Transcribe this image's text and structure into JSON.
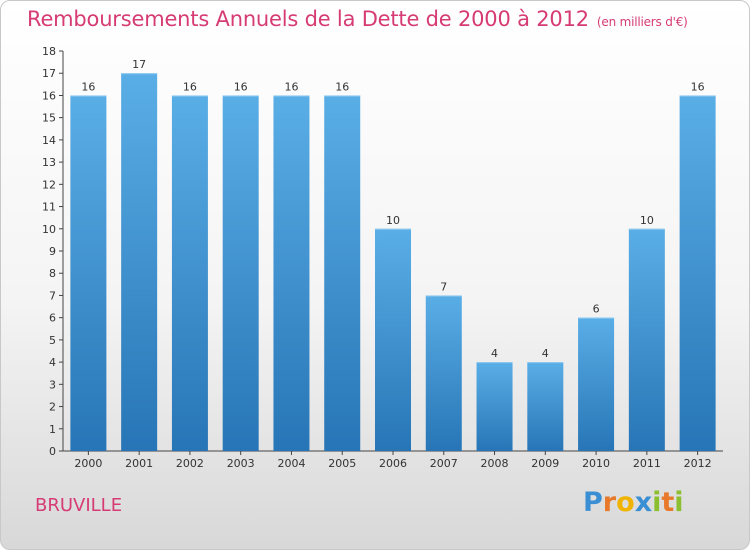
{
  "header": {
    "title": "Remboursements Annuels de la Dette de 2000 à 2012",
    "unit": "(en milliers d'€)"
  },
  "footer": {
    "place": "BRUVILLE",
    "logo_letters": [
      "P",
      "r",
      "o",
      "x",
      "i",
      "t",
      "i"
    ],
    "logo_colors": [
      "#3a8fd4",
      "#e8792a",
      "#f0b400",
      "#3a8fd4",
      "#8bbf2f",
      "#e8792a",
      "#8bbf2f"
    ]
  },
  "colors": {
    "title": "#d63b73",
    "bar_top": "#5aaee6",
    "bar_bottom": "#2775b6",
    "axis": "#444444"
  },
  "chart_data": {
    "type": "bar",
    "categories": [
      "2000",
      "2001",
      "2002",
      "2003",
      "2004",
      "2005",
      "2006",
      "2007",
      "2008",
      "2009",
      "2010",
      "2011",
      "2012"
    ],
    "values": [
      16,
      17,
      16,
      16,
      16,
      16,
      10,
      7,
      4,
      4,
      6,
      10,
      16
    ],
    "data_labels": [
      "16",
      "17",
      "16",
      "16",
      "16",
      "16",
      "10",
      "7",
      "4",
      "4",
      "6",
      "10",
      "16"
    ],
    "yticks": [
      "0",
      "1",
      "2",
      "3",
      "4",
      "5",
      "6",
      "7",
      "8",
      "9",
      "10",
      "11",
      "12",
      "13",
      "14",
      "15",
      "16",
      "17",
      "18"
    ],
    "ylim": [
      0,
      18
    ],
    "title": "Remboursements Annuels de la Dette de 2000 à 2012",
    "xlabel": "",
    "ylabel": "",
    "grid": false,
    "legend": "none"
  }
}
